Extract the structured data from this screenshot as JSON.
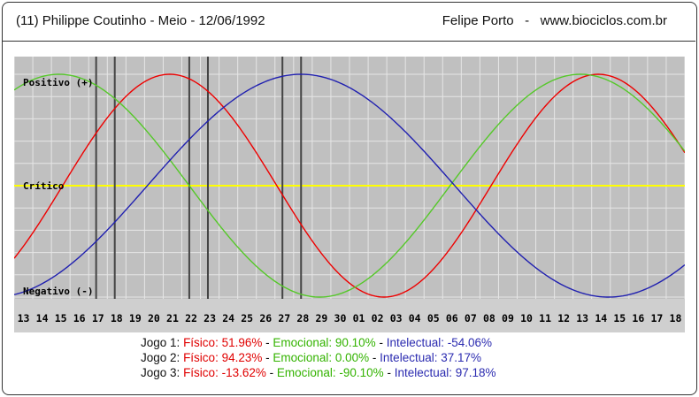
{
  "header": {
    "left": "(11)  Philippe Coutinho - Meio -  12/06/1992",
    "right": "Felipe Porto   -   www.biociclos.com.br"
  },
  "chart_data": {
    "type": "line",
    "title": "",
    "x": [
      "13",
      "14",
      "15",
      "16",
      "17",
      "18",
      "19",
      "20",
      "21",
      "22",
      "23",
      "24",
      "25",
      "26",
      "27",
      "28",
      "29",
      "30",
      "01",
      "02",
      "03",
      "04",
      "05",
      "06",
      "07",
      "08",
      "09",
      "10",
      "11",
      "12",
      "13",
      "14",
      "15",
      "16",
      "17",
      "18"
    ],
    "ylim": [
      -100,
      100
    ],
    "y_labels": {
      "positive": "Positivo (+)",
      "critical": "Crítico",
      "negative": "Negativo (-)"
    },
    "series": [
      {
        "name": "Físico",
        "color": "#ee0000",
        "period_days": 23,
        "peak_index": 7.85
      },
      {
        "name": "Emocional",
        "color": "#55c829",
        "period_days": 28,
        "peak_index": 1.9
      },
      {
        "name": "Intelectual",
        "color": "#2020b0",
        "period_days": 33,
        "peak_index": 14.9
      }
    ],
    "vertical_markers": [
      {
        "label": "Jogo 1",
        "indices": [
          3.9,
          4.9
        ]
      },
      {
        "label": "Jogo 2",
        "indices": [
          8.9,
          9.9
        ]
      },
      {
        "label": "Jogo 3",
        "indices": [
          13.9,
          14.9
        ]
      }
    ],
    "grid": true,
    "colors": {
      "background": "#c0c0c0",
      "grid": "#e6e6e6",
      "critical_line": "#ffff00",
      "marker": "#444444"
    }
  },
  "legend": [
    {
      "jogo": "Jogo 1:",
      "fisico": "Físico: 51.96%",
      "emocional": "Emocional: 90.10%",
      "intelectual": "Intelectual: -54.06%"
    },
    {
      "jogo": "Jogo 2:",
      "fisico": "Físico: 94.23%",
      "emocional": "Emocional: 0.00%",
      "intelectual": "Intelectual: 37.17%"
    },
    {
      "jogo": "Jogo 3:",
      "fisico": "Físico: -13.62%",
      "emocional": "Emocional: -90.10%",
      "intelectual": "Intelectual: 97.18%"
    }
  ],
  "separator": " - "
}
